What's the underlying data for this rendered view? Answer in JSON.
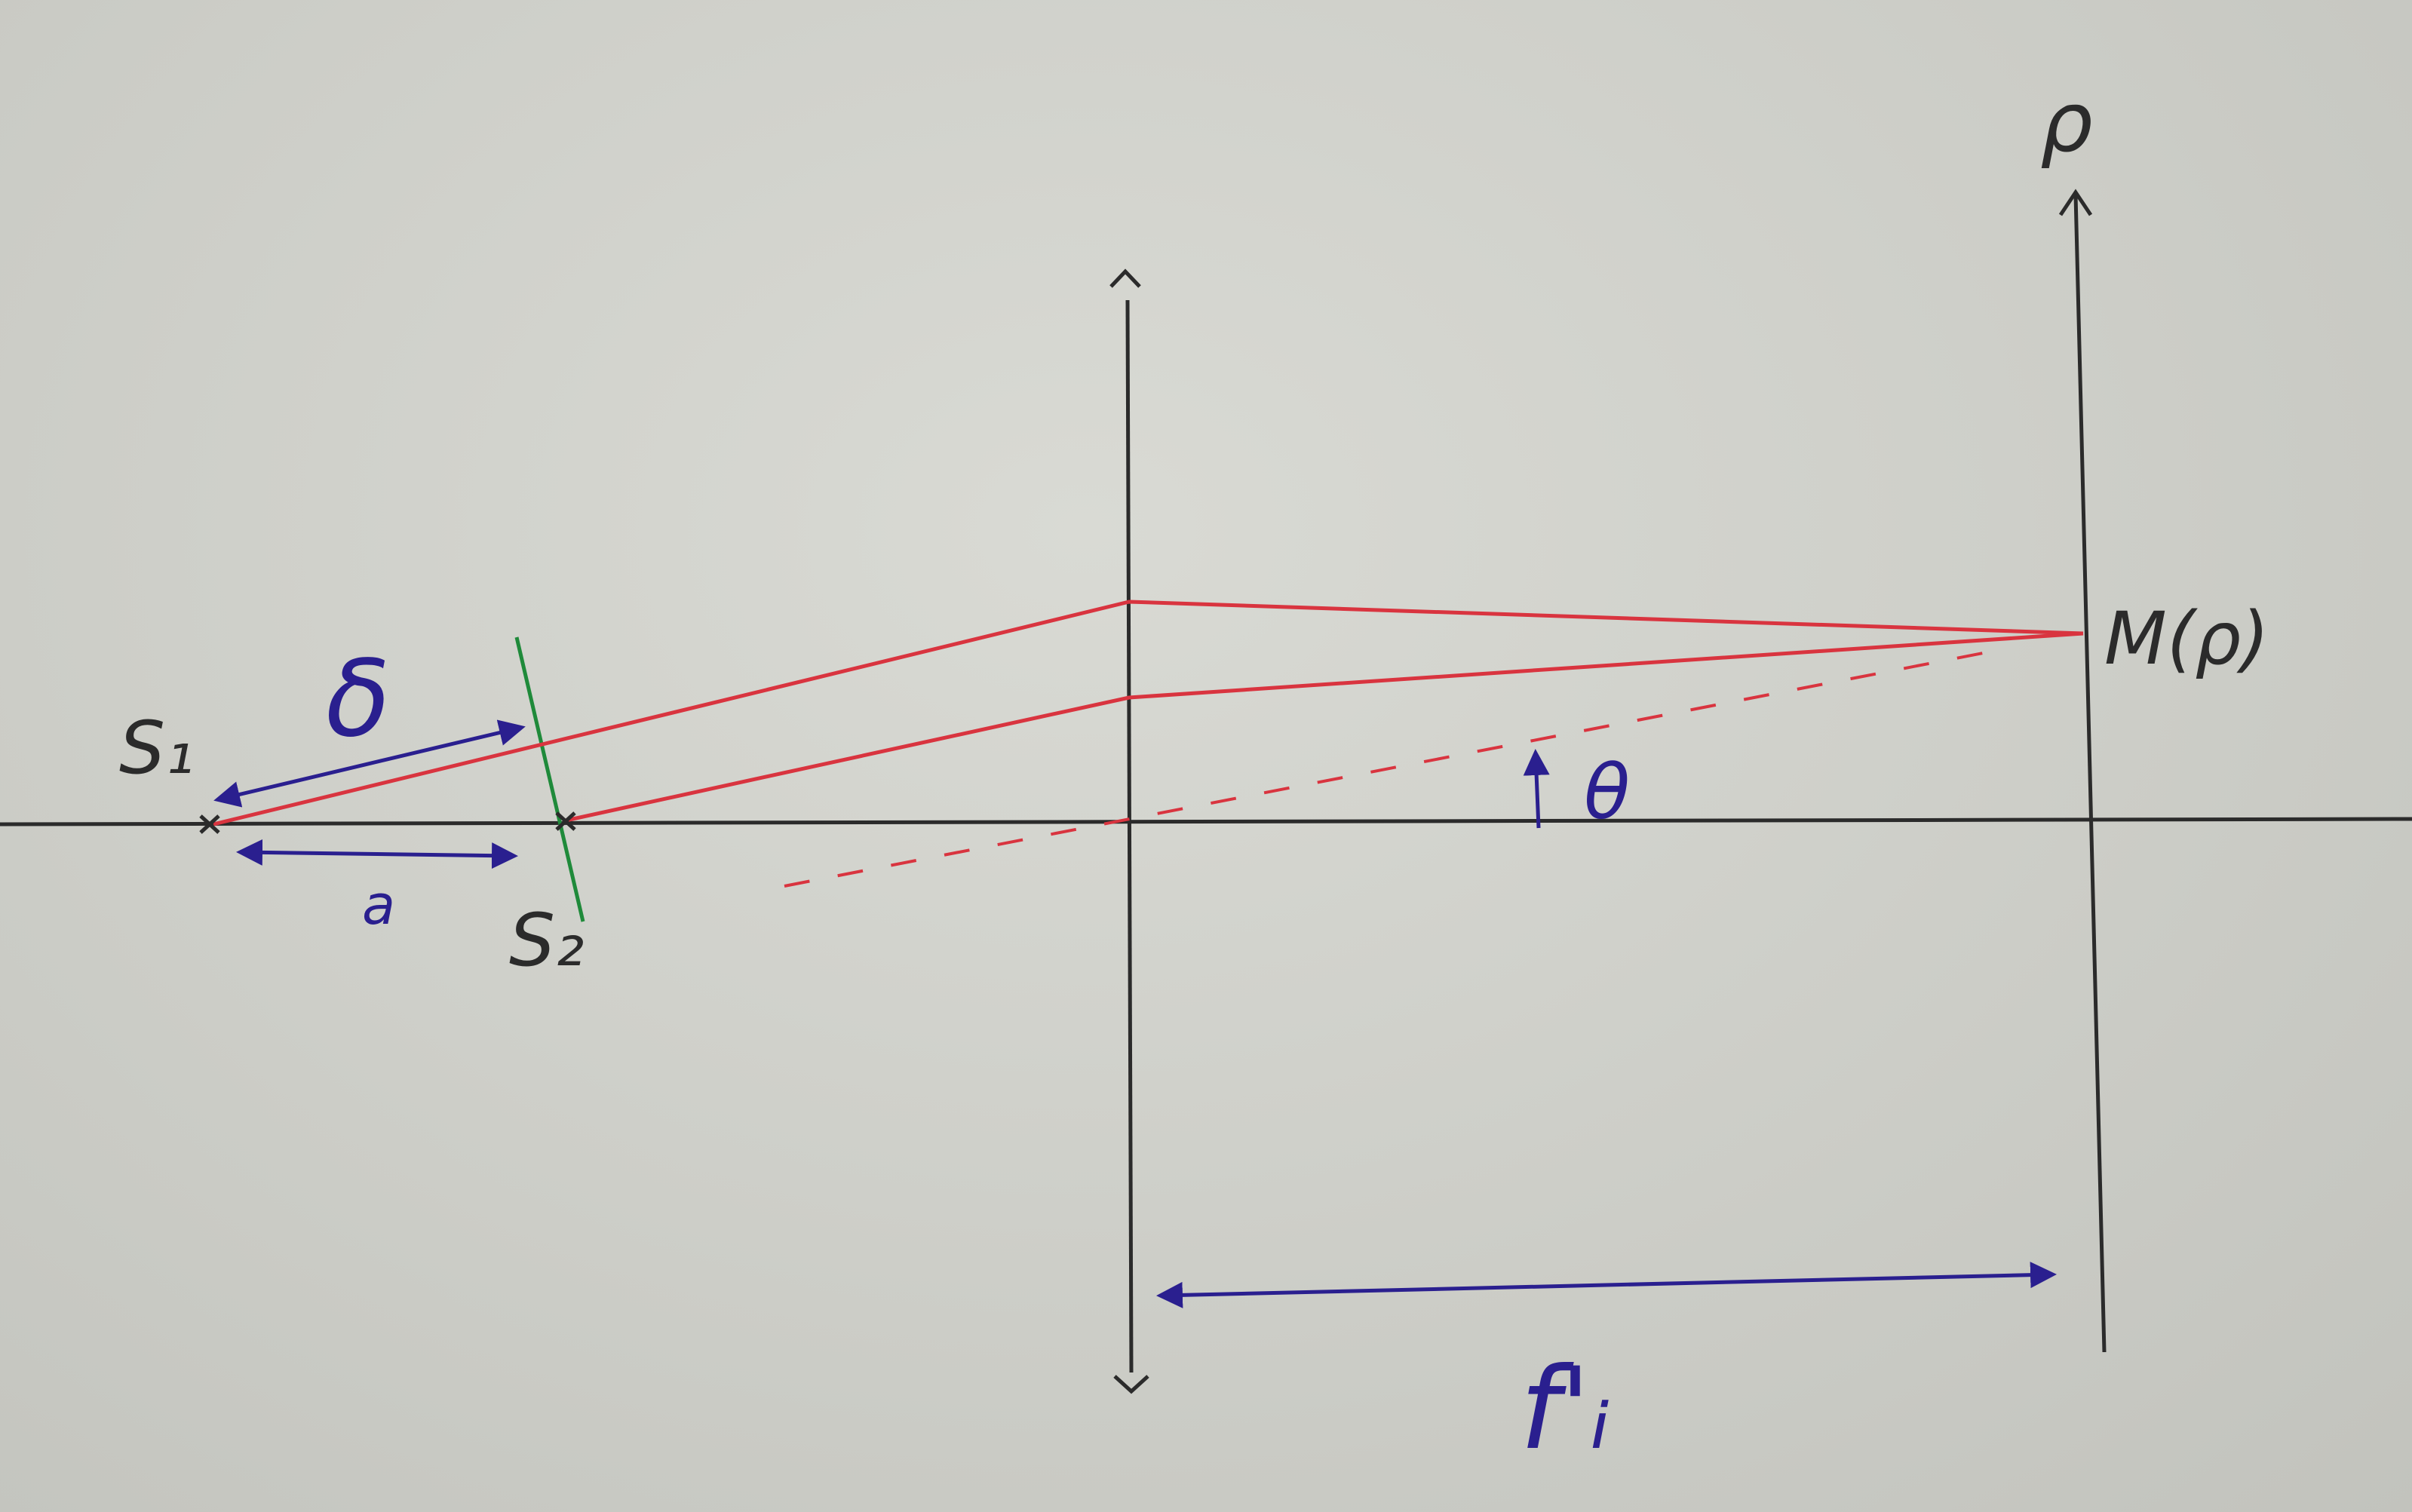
{
  "labels": {
    "source_1": "S₁",
    "source_2": "S₂",
    "screen_axis": "ρ",
    "screen_point": "M(ρ)",
    "angle": "θ",
    "separation": "a",
    "path_difference": "δ",
    "focal_length": "f'ᵢ"
  },
  "colors": {
    "axis": "#2b2b2b",
    "ray": "#d9343f",
    "plate": "#1f8a3a",
    "annotation": "#2a1f8f"
  }
}
